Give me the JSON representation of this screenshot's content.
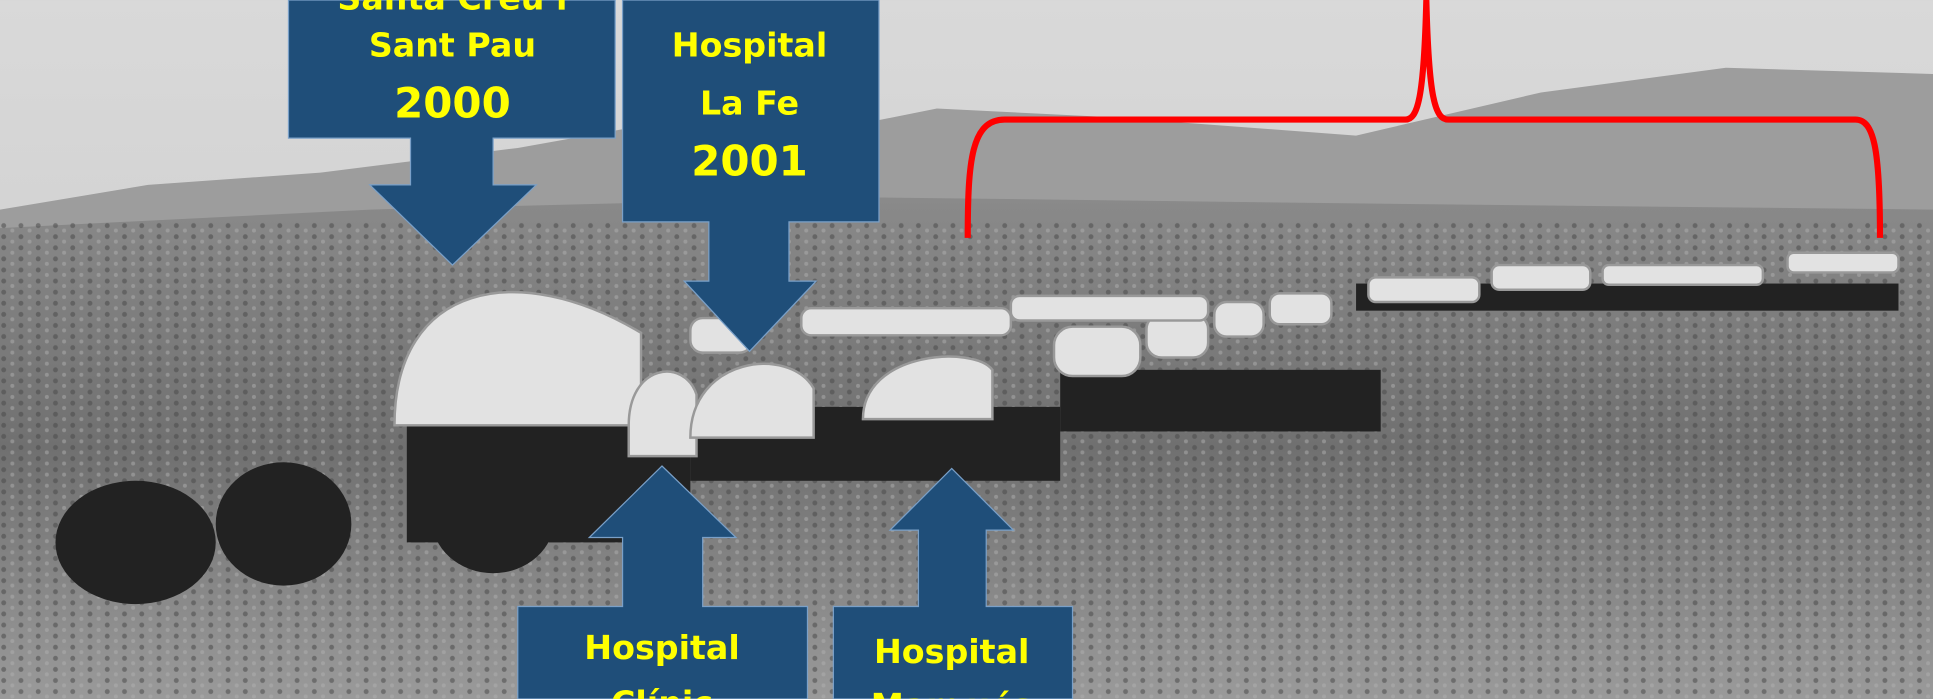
{
  "callouts": [
    {
      "lines": [
        "Santa Creu i",
        "Sant Pau"
      ],
      "year": "2000"
    },
    {
      "lines": [
        "Hospital",
        "La Fe"
      ],
      "year": "2001"
    },
    {
      "lines": [
        "Hospital",
        "Clínic"
      ]
    },
    {
      "lines": [
        "Hospital",
        "Marqués"
      ]
    }
  ]
}
